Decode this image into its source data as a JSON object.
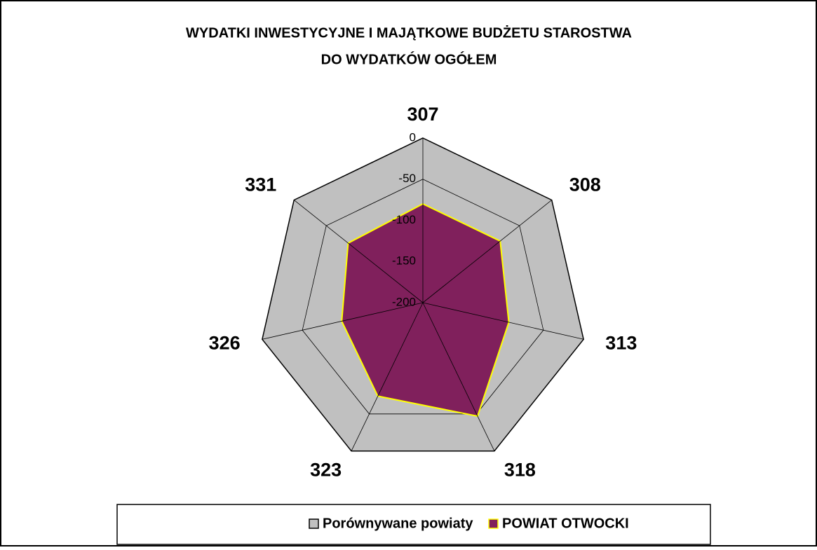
{
  "chart_data": {
    "type": "radar",
    "title": [
      "WYDATKI INWESTYCYJNE I MAJĄTKOWE BUDŻETU STAROSTWA",
      "DO WYDATKÓW OGÓŁEM"
    ],
    "categories": [
      "307",
      "308",
      "313",
      "318",
      "323",
      "326",
      "331"
    ],
    "series": [
      {
        "name": "Porównywane powiaty",
        "color": "#c0c0c0",
        "edge": "#000000",
        "values": [
          0,
          0,
          0,
          0,
          0,
          0,
          0
        ]
      },
      {
        "name": "POWIAT OTWOCKI",
        "color": "#80205c",
        "edge": "#ffff00",
        "values": [
          -80,
          -80,
          -93,
          -47,
          -74,
          -99,
          -84
        ]
      }
    ],
    "ylim": [
      -200,
      0
    ],
    "yticks": [
      -200,
      -150,
      -100,
      -50,
      0
    ],
    "grid": true,
    "legend": "bottom"
  }
}
